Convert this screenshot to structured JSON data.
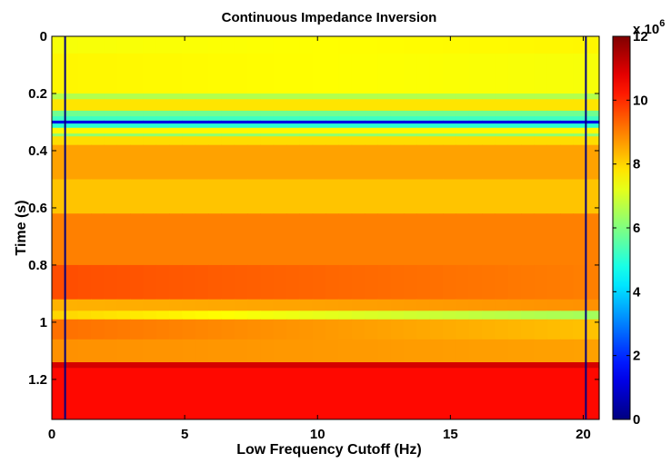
{
  "chart_data": {
    "type": "heatmap",
    "title": "Continuous Impedance Inversion",
    "xlabel": "Low Frequency Cutoff (Hz)",
    "ylabel": "Time (s)",
    "xlim": [
      0,
      20.6
    ],
    "ylim": [
      0,
      1.34
    ],
    "y_reversed": true,
    "xticks": [
      0,
      5,
      10,
      15,
      20
    ],
    "xtick_labels": [
      "0",
      "5",
      "10",
      "15",
      "20"
    ],
    "yticks": [
      0,
      0.2,
      0.4,
      0.6,
      0.8,
      1.0,
      1.2
    ],
    "ytick_labels": [
      "0",
      "0.2",
      "0.4",
      "0.6",
      "0.8",
      "1",
      "1.2"
    ],
    "colorbar": {
      "colormap": "jet",
      "range": [
        0,
        12
      ],
      "ticks": [
        0,
        2,
        4,
        6,
        8,
        10,
        12
      ],
      "tick_labels": [
        "0",
        "2",
        "4",
        "6",
        "8",
        "10",
        "12"
      ],
      "multiplier_label": "x 10",
      "multiplier_exponent": "6"
    },
    "vertical_lines_x": [
      0.5,
      20.1
    ],
    "vertical_line_value": 0,
    "value_units": "x10^6",
    "layers": [
      {
        "t0": 0.0,
        "t1": 0.06,
        "v0": 7.4,
        "v1": 7.6
      },
      {
        "t0": 0.06,
        "t1": 0.2,
        "v0": 7.6,
        "v1": 7.4
      },
      {
        "t0": 0.2,
        "t1": 0.22,
        "v0": 6.6,
        "v1": 6.6
      },
      {
        "t0": 0.22,
        "t1": 0.26,
        "v0": 7.8,
        "v1": 7.8
      },
      {
        "t0": 0.26,
        "t1": 0.28,
        "v0": 5.8,
        "v1": 5.8
      },
      {
        "t0": 0.28,
        "t1": 0.295,
        "v0": 5.2,
        "v1": 5.2
      },
      {
        "t0": 0.295,
        "t1": 0.305,
        "v0": 1.2,
        "v1": 1.2
      },
      {
        "t0": 0.305,
        "t1": 0.32,
        "v0": 5.0,
        "v1": 5.0
      },
      {
        "t0": 0.32,
        "t1": 0.34,
        "v0": 7.6,
        "v1": 7.6
      },
      {
        "t0": 0.34,
        "t1": 0.35,
        "v0": 6.2,
        "v1": 6.2
      },
      {
        "t0": 0.35,
        "t1": 0.38,
        "v0": 7.9,
        "v1": 7.9
      },
      {
        "t0": 0.38,
        "t1": 0.5,
        "v0": 8.6,
        "v1": 8.6
      },
      {
        "t0": 0.5,
        "t1": 0.62,
        "v0": 8.2,
        "v1": 8.2
      },
      {
        "t0": 0.62,
        "t1": 0.8,
        "v0": 9.0,
        "v1": 9.0
      },
      {
        "t0": 0.8,
        "t1": 0.92,
        "v0": 9.6,
        "v1": 9.0
      },
      {
        "t0": 0.92,
        "t1": 0.96,
        "v0": 8.4,
        "v1": 8.8
      },
      {
        "t0": 0.96,
        "t1": 0.99,
        "v0": 8.0,
        "v1": 6.4
      },
      {
        "t0": 0.99,
        "t1": 1.06,
        "v0": 9.2,
        "v1": 8.2
      },
      {
        "t0": 1.06,
        "t1": 1.14,
        "v0": 8.8,
        "v1": 8.6
      },
      {
        "t0": 1.14,
        "t1": 1.16,
        "v0": 11.0,
        "v1": 11.0
      },
      {
        "t0": 1.16,
        "t1": 1.34,
        "v0": 10.4,
        "v1": 10.4
      }
    ]
  }
}
